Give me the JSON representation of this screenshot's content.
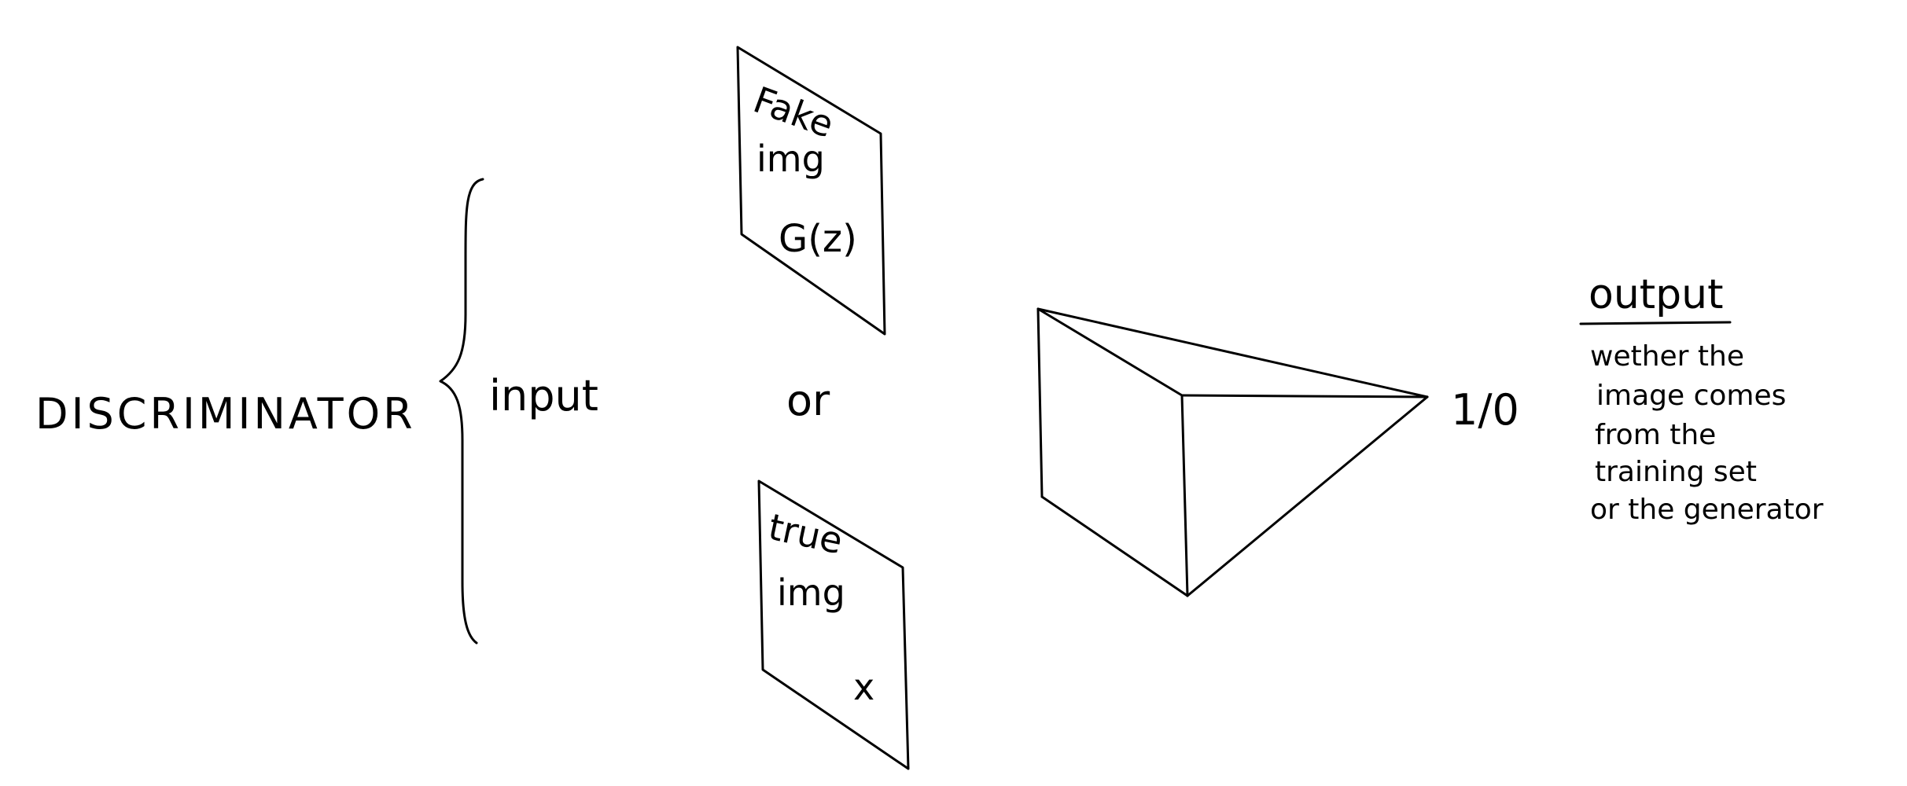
{
  "diagram": {
    "title": "DISCRIMINATOR",
    "input_label": "input",
    "or_label": "or",
    "fake_image": {
      "line1": "Fake",
      "line2": "img",
      "line3": "G(z)"
    },
    "true_image": {
      "line1": "true",
      "line2": "img",
      "line3": "x"
    },
    "output_value": "1/0",
    "output": {
      "heading": "output",
      "lines": [
        "wether the",
        "image comes",
        "from the",
        "training set",
        "or the generator"
      ]
    },
    "colors": {
      "ink": "#000000",
      "background": "#ffffff"
    }
  }
}
